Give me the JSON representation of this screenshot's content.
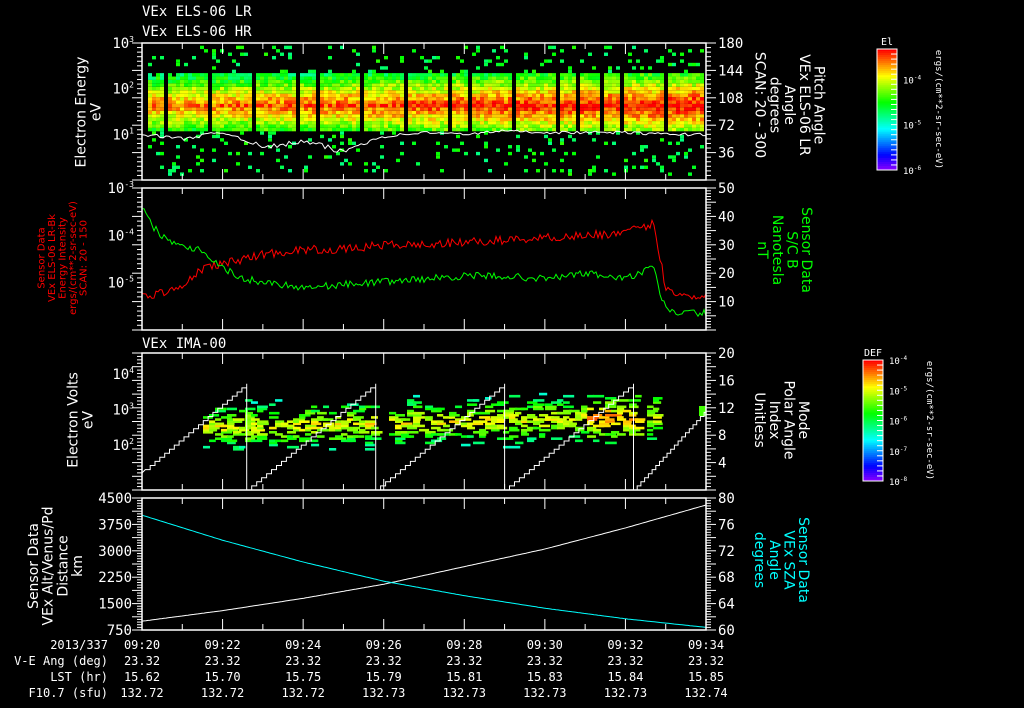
{
  "titles": {
    "panel1_line1": "VEx ELS-06 LR",
    "panel1_line2": "VEx ELS-06 HR",
    "panel3": "VEx IMA-00"
  },
  "colors": {
    "red": "#ff0000",
    "green": "#00ff00",
    "cyan": "#00ffff",
    "white": "#ffffff"
  },
  "labels": {
    "p1_left": [
      "Electron Energy",
      "eV"
    ],
    "p1_right": [
      "Pitch Angle",
      "VEx ELS-06 LR",
      "Angle",
      "degrees",
      "SCAN: 20 - 300"
    ],
    "p1_cbar_title": "El",
    "p1_cbar_units": "ergs/(cm**2-sr-sec-eV)",
    "p2_left": [
      "Sensor Data",
      "VEx ELS-06 LR-Bk",
      "Energy Intensity",
      "ergs/(cm**2-sr-sec-eV)",
      "SCAN: 20 - 150"
    ],
    "p2_right": [
      "Sensor Data",
      "S/C B",
      "Nanotesla",
      "nT"
    ],
    "p3_left": [
      "Electron Volts",
      "eV"
    ],
    "p3_right": [
      "Mode",
      "Polar Angle",
      "Index",
      "Unitless"
    ],
    "p3_cbar_title": "DEF",
    "p3_cbar_units": "ergs/(cm**2-sr-sec-eV)",
    "p4_left": [
      "Sensor Data",
      "VEx Alt/Venus/Pd",
      "Distance",
      "km"
    ],
    "p4_right": [
      "Sensor Data",
      "VEx SZA",
      "Angle",
      "degrees"
    ]
  },
  "ticks": {
    "p1_left": [
      {
        "b": "10",
        "e": "3"
      },
      {
        "b": "10",
        "e": "2"
      },
      {
        "b": "10",
        "e": "1"
      }
    ],
    "p1_right": [
      "180",
      "144",
      "108",
      "72",
      "36"
    ],
    "p1_cbar": [
      {
        "b": "10",
        "e": "-4"
      },
      {
        "b": "10",
        "e": "-5"
      },
      {
        "b": "10",
        "e": "-6"
      }
    ],
    "p2_left": [
      {
        "b": "10",
        "e": "-3"
      },
      {
        "b": "10",
        "e": "-4"
      },
      {
        "b": "10",
        "e": "-5"
      }
    ],
    "p2_right": [
      "50",
      "40",
      "30",
      "20",
      "10"
    ],
    "p3_left": [
      {
        "b": "10",
        "e": "4"
      },
      {
        "b": "10",
        "e": "3"
      },
      {
        "b": "10",
        "e": "2"
      }
    ],
    "p3_right": [
      "20",
      "16",
      "12",
      "8",
      "4"
    ],
    "p3_cbar": [
      {
        "b": "10",
        "e": "-4"
      },
      {
        "b": "10",
        "e": "-5"
      },
      {
        "b": "10",
        "e": "-6"
      },
      {
        "b": "10",
        "e": "-7"
      },
      {
        "b": "10",
        "e": "-8"
      }
    ],
    "p4_left": [
      "4500",
      "3750",
      "3000",
      "2250",
      "1500",
      "750"
    ],
    "p4_right": [
      "80",
      "76",
      "72",
      "68",
      "64",
      "60"
    ]
  },
  "x_axis": {
    "row_labels": [
      "2013/337",
      "V-E Ang (deg)",
      "LST (hr)",
      "F10.7 (sfu)"
    ],
    "columns": [
      {
        "time": "09:20",
        "ve": "23.32",
        "lst": "15.62",
        "f107": "132.72"
      },
      {
        "time": "09:22",
        "ve": "23.32",
        "lst": "15.70",
        "f107": "132.72"
      },
      {
        "time": "09:24",
        "ve": "23.32",
        "lst": "15.75",
        "f107": "132.72"
      },
      {
        "time": "09:26",
        "ve": "23.32",
        "lst": "15.79",
        "f107": "132.73"
      },
      {
        "time": "09:28",
        "ve": "23.32",
        "lst": "15.81",
        "f107": "132.73"
      },
      {
        "time": "09:30",
        "ve": "23.32",
        "lst": "15.83",
        "f107": "132.73"
      },
      {
        "time": "09:32",
        "ve": "23.32",
        "lst": "15.84",
        "f107": "132.73"
      },
      {
        "time": "09:34",
        "ve": "23.32",
        "lst": "15.85",
        "f107": "132.74"
      }
    ]
  },
  "chart_data": [
    {
      "type": "heatmap",
      "title": "VEx ELS-06 LR / HR",
      "ylabel": "Electron Energy (eV)",
      "ylim_log10": [
        0,
        3
      ],
      "y2label": "Pitch Angle (degrees)",
      "y2lim": [
        0,
        180
      ],
      "xlim_min": [
        0,
        14
      ],
      "overlay_line": {
        "name": "white",
        "x_min": [
          0,
          1,
          2,
          3,
          4,
          5,
          6,
          7,
          8,
          9,
          10,
          11,
          12,
          13,
          14
        ],
        "y_eV": [
          10,
          8,
          11,
          5,
          7,
          4,
          9,
          11,
          10,
          12,
          11,
          11,
          11,
          10,
          10
        ]
      }
    },
    {
      "type": "line",
      "ylabel": "Energy Intensity",
      "ylim_log10": [
        -6,
        -3
      ],
      "y2label": "S/C B (nT)",
      "y2lim": [
        0,
        50
      ],
      "xlim_min": [
        0,
        14
      ],
      "series": [
        {
          "name": "ELS-06 LR-Bk",
          "axis": "left",
          "color": "red",
          "x_min": [
            0,
            0.5,
            1,
            1.5,
            2,
            3,
            4,
            5,
            6,
            7,
            8,
            9,
            10,
            11,
            12,
            12.7,
            13,
            13.5,
            14
          ],
          "log10_y": [
            -5.3,
            -5.2,
            -5.1,
            -4.7,
            -4.6,
            -4.4,
            -4.3,
            -4.3,
            -4.2,
            -4.2,
            -4.15,
            -4.1,
            -4.05,
            -4.0,
            -3.95,
            -3.75,
            -5.1,
            -5.3,
            -5.25
          ]
        },
        {
          "name": "S/C B",
          "axis": "right",
          "color": "green",
          "x_min": [
            0,
            0.3,
            0.6,
            1,
            1.5,
            2,
            2.5,
            3,
            4,
            5,
            6,
            7,
            8,
            9,
            10,
            11,
            12,
            12.7,
            12.9,
            13.2,
            14
          ],
          "y": [
            43,
            36,
            32,
            30,
            28,
            22,
            18,
            17,
            15,
            16,
            17,
            18,
            19,
            19,
            18,
            20,
            18,
            22,
            10,
            6,
            6
          ]
        }
      ]
    },
    {
      "type": "heatmap",
      "title": "VEx IMA-00",
      "ylabel": "Electron Volts (eV)",
      "ylim_log10": [
        0.73,
        4.6
      ],
      "y2label": "Mode Polar Angle Index",
      "y2lim": [
        0,
        20
      ],
      "xlim_min": [
        0,
        14
      ],
      "overlay_line": {
        "name": "polar-angle-index",
        "ramp_from": 0,
        "ramp_to": 15.5,
        "reset_min": [
          2.6,
          5.8,
          9.0,
          12.2
        ],
        "ramp_start_value_min0": 2.5
      }
    },
    {
      "type": "line",
      "ylabel": "Distance (km)",
      "ylim": [
        750,
        4500
      ],
      "y2label": "SZA (degrees)",
      "y2lim": [
        60,
        80
      ],
      "xlim_min": [
        0,
        14
      ],
      "series": [
        {
          "name": "VEx Alt/Venus/Pd",
          "axis": "left",
          "color": "white",
          "x_min": [
            0,
            2,
            4,
            6,
            8,
            10,
            12,
            14
          ],
          "y": [
            1000,
            1300,
            1650,
            2050,
            2550,
            3050,
            3650,
            4300
          ]
        },
        {
          "name": "VEx SZA",
          "axis": "right",
          "color": "cyan",
          "x_min": [
            0,
            2,
            4,
            6,
            8,
            10,
            12,
            14
          ],
          "y": [
            77.4,
            73.6,
            70.3,
            67.4,
            65.2,
            63.3,
            61.7,
            60.4
          ]
        }
      ]
    }
  ]
}
